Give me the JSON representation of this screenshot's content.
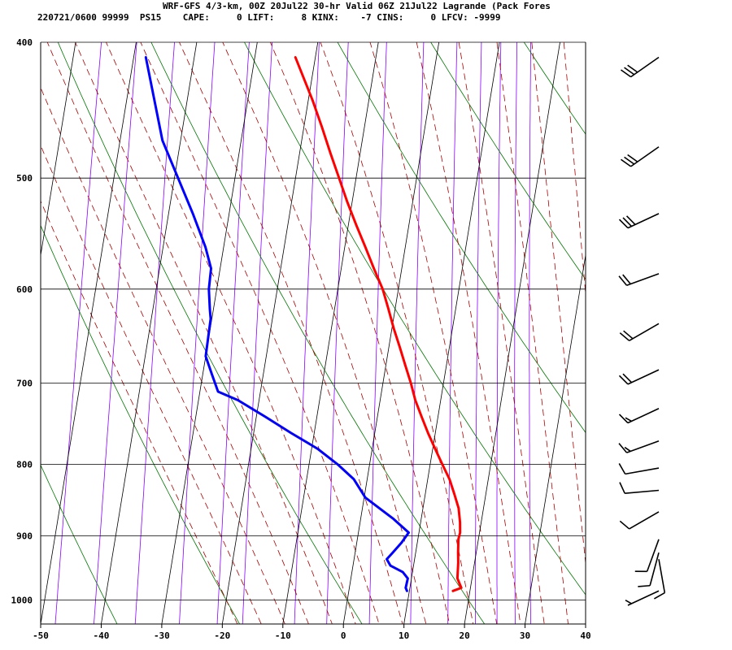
{
  "header": {
    "title": "WRF-GFS 4/3-km, 00Z 20Jul22 30-hr Valid 06Z 21Jul22 Lagrande (Pack Fores",
    "info": "220721/0600 99999  PS15    CAPE:     0 LIFT:     8 KINX:    -7 CINS:     0 LFCV: -9999"
  },
  "colors": {
    "temperature": "#ff0000",
    "dewpoint": "#0000ff",
    "isotherm": "#000000",
    "isobar": "#000000",
    "mixing_ratio": "#8b00ff",
    "dry_adiabat": "#007700",
    "moist_adiabat": "#aa0000",
    "wind_barb": "#000000"
  },
  "chart_data": {
    "type": "line",
    "chart_kind": "skew-T log-P sounding",
    "xlim": [
      -50,
      40
    ],
    "ylim": [
      1040,
      400
    ],
    "y_scale": "log",
    "grid": true,
    "x_ticks": [
      -50,
      -40,
      -30,
      -20,
      -10,
      0,
      10,
      20,
      30,
      40
    ],
    "x_tick_labels": [
      "-50",
      "-40",
      "-30",
      "-20",
      "-10",
      "0",
      "10",
      "20",
      "30",
      "40"
    ],
    "y_ticks": [
      400,
      500,
      600,
      700,
      800,
      900,
      1000
    ],
    "y_tick_labels": [
      "400",
      "500",
      "600",
      "700",
      "800",
      "900",
      "1000"
    ],
    "series": [
      {
        "key": "temperature",
        "pressure": [
          985,
          980,
          965,
          940,
          925,
          905,
          895,
          880,
          860,
          840,
          820,
          800,
          780,
          760,
          740,
          720,
          700,
          680,
          660,
          640,
          620,
          600,
          580,
          560,
          540,
          520,
          500,
          480,
          460,
          440,
          410
        ],
        "values": [
          17.2,
          18.5,
          17.6,
          17.3,
          17.0,
          16.7,
          16.8,
          16.5,
          15.9,
          14.8,
          13.6,
          12.0,
          10.4,
          8.8,
          7.3,
          5.8,
          4.6,
          3.2,
          1.8,
          0.3,
          -1.1,
          -2.6,
          -4.6,
          -6.6,
          -8.7,
          -10.8,
          -12.8,
          -14.9,
          -17.0,
          -19.3,
          -23.3
        ]
      },
      {
        "key": "dewpoint",
        "pressure": [
          985,
          980,
          965,
          955,
          945,
          935,
          925,
          910,
          895,
          875,
          845,
          820,
          800,
          780,
          760,
          740,
          720,
          710,
          690,
          670,
          630,
          620,
          600,
          580,
          560,
          530,
          470,
          410
        ],
        "values": [
          9.6,
          9.3,
          9.4,
          8.4,
          6.2,
          5.4,
          6.2,
          7.4,
          8.3,
          5.4,
          0.2,
          -2.2,
          -5.3,
          -9.0,
          -13.8,
          -18.5,
          -23.5,
          -27.0,
          -28.5,
          -30.0,
          -30.2,
          -30.6,
          -31.3,
          -31.5,
          -33.0,
          -36.0,
          -43.0,
          -48.0
        ]
      }
    ],
    "wind_barbs": [
      {
        "pressure": 410,
        "speed_kt": 30,
        "direction_deg": 235
      },
      {
        "pressure": 475,
        "speed_kt": 30,
        "direction_deg": 235
      },
      {
        "pressure": 530,
        "speed_kt": 30,
        "direction_deg": 245
      },
      {
        "pressure": 585,
        "speed_kt": 20,
        "direction_deg": 250
      },
      {
        "pressure": 635,
        "speed_kt": 20,
        "direction_deg": 240
      },
      {
        "pressure": 685,
        "speed_kt": 20,
        "direction_deg": 245
      },
      {
        "pressure": 730,
        "speed_kt": 15,
        "direction_deg": 245
      },
      {
        "pressure": 770,
        "speed_kt": 15,
        "direction_deg": 250
      },
      {
        "pressure": 805,
        "speed_kt": 10,
        "direction_deg": 260
      },
      {
        "pressure": 835,
        "speed_kt": 10,
        "direction_deg": 265
      },
      {
        "pressure": 865,
        "speed_kt": 10,
        "direction_deg": 240
      },
      {
        "pressure": 905,
        "speed_kt": 10,
        "direction_deg": 200
      },
      {
        "pressure": 925,
        "speed_kt": 10,
        "direction_deg": 195
      },
      {
        "pressure": 935,
        "speed_kt": 10,
        "direction_deg": 170
      },
      {
        "pressure": 985,
        "speed_kt": 5,
        "direction_deg": 245
      }
    ]
  }
}
